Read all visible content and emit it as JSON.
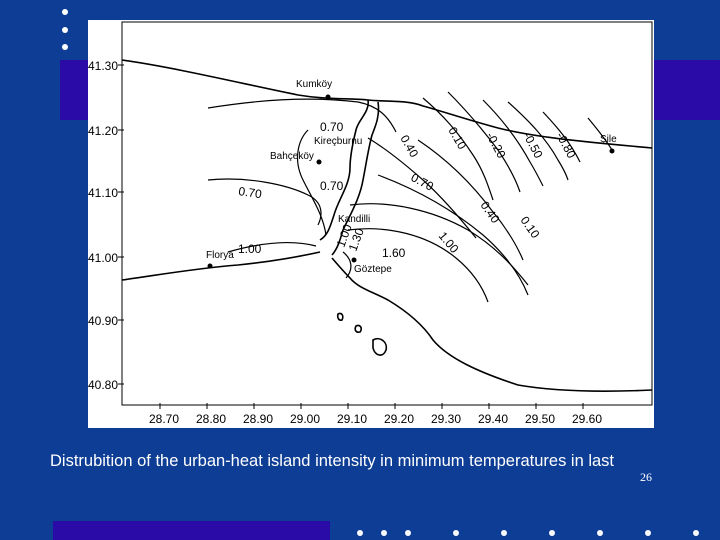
{
  "map": {
    "lat_labels": [
      "41.30",
      "41.20",
      "41.10",
      "41.00",
      "40.90",
      "40.80"
    ],
    "lon_labels": [
      "28.70",
      "28.80",
      "28.90",
      "29.00",
      "29.10",
      "29.20",
      "29.30",
      "29.40",
      "29.50",
      "29.60"
    ],
    "places": {
      "kumkoy": "Kumköy",
      "kirecburnu": "Kireçburnu",
      "bahcekoy": "Bahçeköy",
      "kandilli": "Kandilli",
      "florya": "Florya",
      "goztepe": "Göztepe",
      "sile": "Şile"
    },
    "contour_labels": {
      "c070_north": "0.70",
      "c040_north": "0.40",
      "c010_north": "0.10",
      "c020_neg": "-0.20",
      "c050_neg": "-0.50",
      "c080_neg": "-0.80",
      "c070_west": "0.70",
      "c070_mid": "0.70",
      "c070_east": "0.70",
      "c100_west": "1.00",
      "c100_mid": "1.00",
      "c130": "1.30",
      "c160": "1.60",
      "c040_east": "0.40",
      "c010_east": "0.10",
      "c100_east": "1.00"
    }
  },
  "caption": "Distrubition of the urban-heat island intensity in minimum temperatures in last",
  "page_number": "26"
}
